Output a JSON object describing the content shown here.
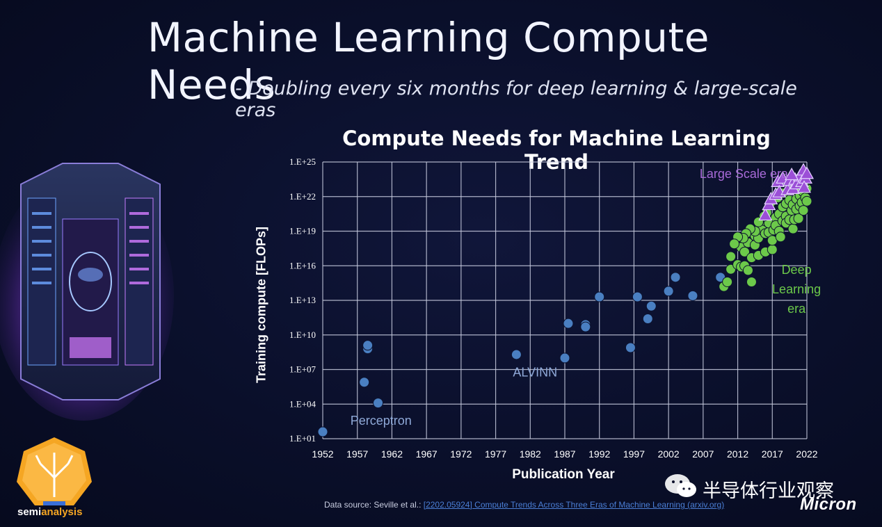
{
  "slide": {
    "title": "Machine Learning Compute Needs",
    "subtitle": "- Doubling every six months for deep learning & large-scale eras",
    "source_prefix": "Data source: Seville et al.:",
    "source_link": "[2202.05924] Compute Trends Across Three Eras of Machine Learning (arxiv.org)",
    "brand": "semianalysis",
    "brand_part1": "semi",
    "brand_part2": "analysis",
    "wechat_account": "半导体行业观察",
    "company": "Micron"
  },
  "icons": {
    "server": "supercomputer-illustration",
    "logo": "semianalysis-tree-logo",
    "wechat": "wechat-icon"
  },
  "colors": {
    "background": "#0a0f2a",
    "grid": "#c9cde0",
    "blue_points": "#4a7fc1",
    "green_points": "#6cc94a",
    "purple_points": "#9b4fd6",
    "annotation_blue": "#8fa9d8",
    "annotation_green": "#6cc94a",
    "annotation_purple": "#a86ad8"
  },
  "chart_data": {
    "type": "scatter",
    "title": "Compute Needs for Machine Learning Trend",
    "xlabel": "Publication Year",
    "ylabel": "Training compute [FLOPs]",
    "xlim": [
      1952,
      2022
    ],
    "ylim_log10": [
      1,
      25
    ],
    "y_scale": "log",
    "grid": true,
    "x_ticks": [
      "1952",
      "1957",
      "1962",
      "1967",
      "1972",
      "1977",
      "1982",
      "1987",
      "1992",
      "1997",
      "2002",
      "2007",
      "2012",
      "2017",
      "2022"
    ],
    "y_ticks": [
      "1.E+01",
      "1.E+04",
      "1.E+07",
      "1.E+10",
      "1.E+13",
      "1.E+16",
      "1.E+19",
      "1.E+22",
      "1.E+25"
    ],
    "annotations": [
      {
        "text": "Perceptron",
        "x": 1956,
        "y_log10": 2.2,
        "color": "blue"
      },
      {
        "text": "ALVINN",
        "x": 1979.5,
        "y_log10": 6.4,
        "color": "blue"
      },
      {
        "text": "Large Scale era",
        "x": 2006.5,
        "y_log10": 23.6,
        "color": "purple"
      },
      {
        "text": "Deep",
        "x": 2020.5,
        "y_log10": 15.3,
        "color": "green"
      },
      {
        "text": "Learning",
        "x": 2020.5,
        "y_log10": 13.6,
        "color": "green"
      },
      {
        "text": "era",
        "x": 2020.5,
        "y_log10": 11.9,
        "color": "green"
      }
    ],
    "series": [
      {
        "era": "pre-deep-learning",
        "color": "blue",
        "marker": "circle",
        "points": [
          [
            1952,
            1.6
          ],
          [
            1958,
            5.9
          ],
          [
            1958.5,
            8.8
          ],
          [
            1958.5,
            9.1
          ],
          [
            1960,
            4.1
          ],
          [
            1980,
            8.3
          ],
          [
            1987,
            8.0
          ],
          [
            1987.5,
            11.0
          ],
          [
            1990,
            10.9
          ],
          [
            1990,
            10.7
          ],
          [
            1992,
            13.3
          ],
          [
            1996.5,
            8.9
          ],
          [
            1997.5,
            13.3
          ],
          [
            1999,
            11.4
          ],
          [
            1999.5,
            12.5
          ],
          [
            2002,
            13.8
          ],
          [
            2003,
            15.0
          ],
          [
            2005.5,
            13.4
          ],
          [
            2009.5,
            15.0
          ]
        ]
      },
      {
        "era": "deep-learning",
        "color": "green",
        "marker": "circle",
        "points": [
          [
            2010,
            14.2
          ],
          [
            2010.5,
            14.6
          ],
          [
            2011,
            15.7
          ],
          [
            2011,
            16.8
          ],
          [
            2012,
            16.1
          ],
          [
            2012.5,
            15.9
          ],
          [
            2013,
            16.0
          ],
          [
            2013.5,
            15.6
          ],
          [
            2014,
            14.6
          ],
          [
            2012.5,
            17.6
          ],
          [
            2013,
            17.2
          ],
          [
            2013.5,
            18.0
          ],
          [
            2014,
            16.7
          ],
          [
            2014.5,
            17.8
          ],
          [
            2014.5,
            18.6
          ],
          [
            2015,
            16.9
          ],
          [
            2015,
            18.4
          ],
          [
            2015.5,
            19.4
          ],
          [
            2015.5,
            19.1
          ],
          [
            2016,
            18.8
          ],
          [
            2016,
            17.2
          ],
          [
            2016.5,
            18.9
          ],
          [
            2016.5,
            19.7
          ],
          [
            2017,
            17.4
          ],
          [
            2017,
            18.2
          ],
          [
            2017.2,
            19.1
          ],
          [
            2017.5,
            20.2
          ],
          [
            2017.5,
            19.5
          ],
          [
            2018,
            19.0
          ],
          [
            2018,
            20.5
          ],
          [
            2018.2,
            18.5
          ],
          [
            2018.5,
            21.1
          ],
          [
            2018.5,
            19.9
          ],
          [
            2019,
            20.3
          ],
          [
            2019,
            19.7
          ],
          [
            2019,
            21.4
          ],
          [
            2019.5,
            20.0
          ],
          [
            2019.5,
            21.7
          ],
          [
            2019.8,
            20.8
          ],
          [
            2020,
            21.3
          ],
          [
            2020,
            19.2
          ],
          [
            2020.2,
            20.0
          ],
          [
            2020.5,
            21.8
          ],
          [
            2020.5,
            20.9
          ],
          [
            2020.8,
            20.1
          ],
          [
            2021,
            22.1
          ],
          [
            2021,
            21.2
          ],
          [
            2021.3,
            21.5
          ],
          [
            2021.5,
            22.4
          ],
          [
            2021.5,
            20.8
          ],
          [
            2021.8,
            21.9
          ],
          [
            2022,
            22.7
          ],
          [
            2022,
            21.6
          ],
          [
            2021.5,
            23.0
          ],
          [
            2020.8,
            22.9
          ],
          [
            2019.7,
            22.5
          ],
          [
            2018.5,
            22.3
          ],
          [
            2017.8,
            21.9
          ],
          [
            2016.8,
            21.5
          ],
          [
            2016.2,
            20.6
          ],
          [
            2015.8,
            20.3
          ],
          [
            2015,
            19.8
          ],
          [
            2014.5,
            19.0
          ],
          [
            2013.8,
            19.2
          ],
          [
            2013.2,
            18.8
          ],
          [
            2012.8,
            18.4
          ],
          [
            2012,
            18.5
          ],
          [
            2011.5,
            17.9
          ]
        ]
      },
      {
        "era": "large-scale",
        "color": "purple",
        "marker": "triangle",
        "points": [
          [
            2016,
            20.4
          ],
          [
            2016.5,
            21.3
          ],
          [
            2016.8,
            21.8
          ],
          [
            2017.5,
            22.2
          ],
          [
            2017.8,
            23.3
          ],
          [
            2018,
            22.4
          ],
          [
            2018.5,
            23.6
          ],
          [
            2019.2,
            22.6
          ],
          [
            2019.5,
            23.4
          ],
          [
            2020,
            22.7
          ],
          [
            2020.3,
            23.5
          ],
          [
            2020.5,
            23.1
          ],
          [
            2021,
            23.8
          ],
          [
            2021.3,
            23.3
          ],
          [
            2021.5,
            24.3
          ],
          [
            2021.8,
            23.6
          ],
          [
            2022,
            24.0
          ],
          [
            2021.6,
            22.8
          ],
          [
            2019.8,
            23.9
          ]
        ]
      }
    ]
  }
}
